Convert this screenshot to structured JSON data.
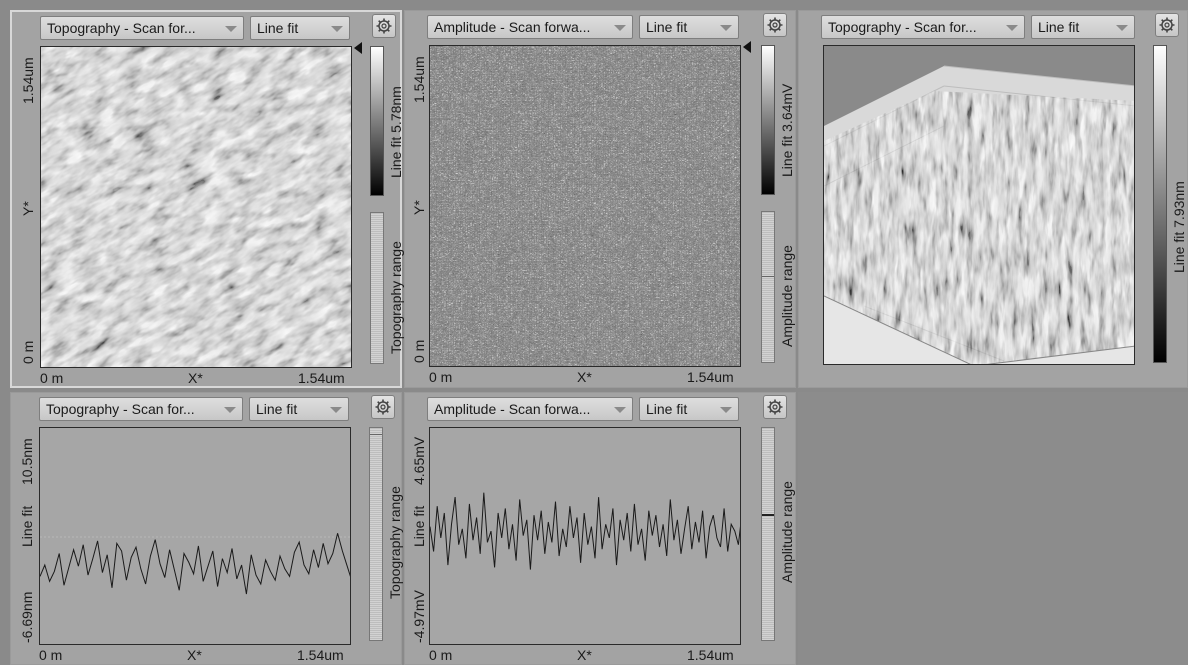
{
  "panels": {
    "topo_map": {
      "channel": "Topography - Scan for...",
      "filter": "Line fit",
      "y_top": "1.54um",
      "y_mid": "Y*",
      "y_bottom": "0 m",
      "x_left": "0 m",
      "x_mid": "X*",
      "x_right": "1.54um",
      "colorbar_label": "Line fit 5.78nm",
      "range_label": "Topography range"
    },
    "amp_map": {
      "channel": "Amplitude - Scan forwa...",
      "filter": "Line fit",
      "y_top": "1.54um",
      "y_mid": "Y*",
      "y_bottom": "0 m",
      "x_left": "0 m",
      "x_mid": "X*",
      "x_right": "1.54um",
      "colorbar_label": "Line fit 3.64mV",
      "range_label": "Amplitude range"
    },
    "topo_3d": {
      "channel": "Topography - Scan for...",
      "filter": "Line fit",
      "colorbar_label": "Line fit 7.93nm"
    },
    "topo_line": {
      "channel": "Topography - Scan for...",
      "filter": "Line fit",
      "y_top": "10.5nm",
      "y_mid": "Line fit",
      "y_bottom": "-6.69nm",
      "x_left": "0 m",
      "x_mid": "X*",
      "x_right": "1.54um",
      "range_label": "Topography range"
    },
    "amp_line": {
      "channel": "Amplitude - Scan forwa...",
      "filter": "Line fit",
      "y_top": "4.65mV",
      "y_mid": "Line fit",
      "y_bottom": "-4.97mV",
      "x_left": "0 m",
      "x_mid": "X*",
      "x_right": "1.54um",
      "range_label": "Amplitude range"
    }
  },
  "icons": {
    "dropdown": "chevron-down-icon",
    "settings": "gear-icon",
    "marker": "triangle-marker-icon"
  },
  "colors": {
    "panel_bg": "#a3a3a3",
    "app_bg": "#8a8a8a",
    "trace": "#1a1a1a"
  },
  "profiles": {
    "topo_line": {
      "min": -6.69,
      "max": 10.5,
      "values": [
        -1.2,
        -0.3,
        -1.6,
        -0.8,
        0.6,
        -1.9,
        -0.5,
        0.9,
        -0.4,
        1.3,
        -1.1,
        0.2,
        1.6,
        -0.9,
        0.5,
        -2.1,
        1.4,
        0.8,
        -1.5,
        0.3,
        1.1,
        -0.6,
        -1.8,
        0.4,
        1.7,
        -0.2,
        -1.3,
        0.9,
        -0.7,
        -2.3,
        0.6,
        -0.1,
        -1.0,
        1.2,
        -1.6,
        -0.4,
        0.8,
        -2.0,
        0.2,
        -0.9,
        1.0,
        -1.4,
        -0.3,
        -2.6,
        0.5,
        -1.1,
        -1.8,
        0.1,
        -0.8,
        -1.5,
        0.4,
        -0.6,
        -1.2,
        0.7,
        1.5,
        -0.3,
        -1.0,
        0.9,
        -0.5,
        1.4,
        -0.2,
        0.6,
        2.2,
        0.8,
        -0.4,
        -1.6
      ]
    },
    "amp_line": {
      "min": -4.97,
      "max": 4.65,
      "values": [
        0.3,
        -0.8,
        1.2,
        -0.2,
        0.9,
        -1.4,
        0.4,
        1.6,
        -0.5,
        0.2,
        -1.1,
        1.3,
        -0.3,
        0.7,
        -0.9,
        1.8,
        -0.4,
        0.1,
        -1.5,
        0.9,
        -0.2,
        1.1,
        -0.7,
        0.4,
        -1.2,
        1.5,
        -0.1,
        0.6,
        -1.6,
        0.8,
        -0.3,
        1.0,
        -0.9,
        0.5,
        -0.4,
        1.4,
        -1.0,
        0.2,
        -0.6,
        1.2,
        -0.2,
        0.7,
        -1.3,
        0.9,
        -0.5,
        0.3,
        -1.1,
        1.6,
        -0.7,
        0.4,
        -0.2,
        1.1,
        -1.4,
        0.6,
        -0.3,
        0.9,
        -0.8,
        1.3,
        -0.5,
        0.2,
        -1.2,
        1.0,
        -0.1,
        0.8,
        -0.6,
        0.4,
        -1.0,
        1.5,
        -0.3,
        0.6,
        -0.9,
        0.2,
        1.2,
        -0.7,
        0.5,
        -0.4,
        1.0,
        -1.1,
        0.3,
        0.8,
        -0.2,
        -0.6,
        1.1,
        -0.8,
        0.4,
        0.1,
        -0.5,
        0.9
      ]
    }
  }
}
